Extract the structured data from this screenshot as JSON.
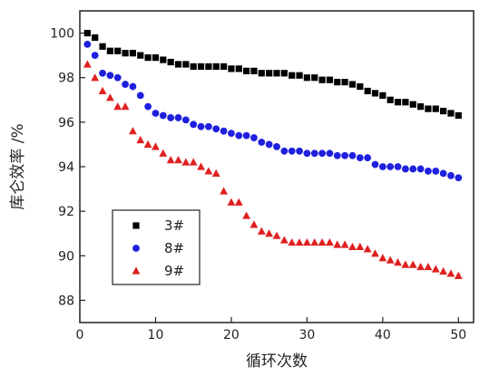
{
  "chart_data": {
    "type": "scatter",
    "title": "",
    "xlabel": "循环次数",
    "ylabel": "库仑效率 /%",
    "xlim": [
      0,
      52
    ],
    "ylim": [
      87,
      101
    ],
    "xticks": [
      0,
      10,
      20,
      30,
      40,
      50
    ],
    "yticks": [
      88,
      90,
      92,
      94,
      96,
      98,
      100
    ],
    "grid": false,
    "legend_position": "lower-left",
    "series": [
      {
        "name": "3#",
        "marker": "square",
        "color": "#000000",
        "x": [
          1,
          2,
          3,
          4,
          5,
          6,
          7,
          8,
          9,
          10,
          11,
          12,
          13,
          14,
          15,
          16,
          17,
          18,
          19,
          20,
          21,
          22,
          23,
          24,
          25,
          26,
          27,
          28,
          29,
          30,
          31,
          32,
          33,
          34,
          35,
          36,
          37,
          38,
          39,
          40,
          41,
          42,
          43,
          44,
          45,
          46,
          47,
          48,
          49,
          50
        ],
        "y": [
          100.0,
          99.8,
          99.4,
          99.2,
          99.2,
          99.1,
          99.1,
          99.0,
          98.9,
          98.9,
          98.8,
          98.7,
          98.6,
          98.6,
          98.5,
          98.5,
          98.5,
          98.5,
          98.5,
          98.4,
          98.4,
          98.3,
          98.3,
          98.2,
          98.2,
          98.2,
          98.2,
          98.1,
          98.1,
          98.0,
          98.0,
          97.9,
          97.9,
          97.8,
          97.8,
          97.7,
          97.6,
          97.4,
          97.3,
          97.2,
          97.0,
          96.9,
          96.9,
          96.8,
          96.7,
          96.6,
          96.6,
          96.5,
          96.4,
          96.3
        ]
      },
      {
        "name": "8#",
        "marker": "circle",
        "color": "#1f1fe0",
        "x": [
          1,
          2,
          3,
          4,
          5,
          6,
          7,
          8,
          9,
          10,
          11,
          12,
          13,
          14,
          15,
          16,
          17,
          18,
          19,
          20,
          21,
          22,
          23,
          24,
          25,
          26,
          27,
          28,
          29,
          30,
          31,
          32,
          33,
          34,
          35,
          36,
          37,
          38,
          39,
          40,
          41,
          42,
          43,
          44,
          45,
          46,
          47,
          48,
          49,
          50
        ],
        "y": [
          99.5,
          99.0,
          98.2,
          98.1,
          98.0,
          97.7,
          97.6,
          97.2,
          96.7,
          96.4,
          96.3,
          96.2,
          96.2,
          96.1,
          95.9,
          95.8,
          95.8,
          95.7,
          95.6,
          95.5,
          95.4,
          95.4,
          95.3,
          95.1,
          95.0,
          94.9,
          94.7,
          94.7,
          94.7,
          94.6,
          94.6,
          94.6,
          94.6,
          94.5,
          94.5,
          94.5,
          94.4,
          94.4,
          94.1,
          94.0,
          94.0,
          94.0,
          93.9,
          93.9,
          93.9,
          93.8,
          93.8,
          93.7,
          93.6,
          93.5
        ]
      },
      {
        "name": "9#",
        "marker": "triangle",
        "color": "#e02020",
        "x": [
          1,
          2,
          3,
          4,
          5,
          6,
          7,
          8,
          9,
          10,
          11,
          12,
          13,
          14,
          15,
          16,
          17,
          18,
          19,
          20,
          21,
          22,
          23,
          24,
          25,
          26,
          27,
          28,
          29,
          30,
          31,
          32,
          33,
          34,
          35,
          36,
          37,
          38,
          39,
          40,
          41,
          42,
          43,
          44,
          45,
          46,
          47,
          48,
          49,
          50
        ],
        "y": [
          98.6,
          98.0,
          97.4,
          97.1,
          96.7,
          96.7,
          95.6,
          95.2,
          95.0,
          94.9,
          94.6,
          94.3,
          94.3,
          94.2,
          94.2,
          94.0,
          93.8,
          93.7,
          92.9,
          92.4,
          92.4,
          91.8,
          91.4,
          91.1,
          91.0,
          90.9,
          90.7,
          90.6,
          90.6,
          90.6,
          90.6,
          90.6,
          90.6,
          90.5,
          90.5,
          90.4,
          90.4,
          90.3,
          90.1,
          89.9,
          89.8,
          89.7,
          89.6,
          89.6,
          89.5,
          89.5,
          89.4,
          89.3,
          89.2,
          89.1
        ]
      }
    ]
  }
}
